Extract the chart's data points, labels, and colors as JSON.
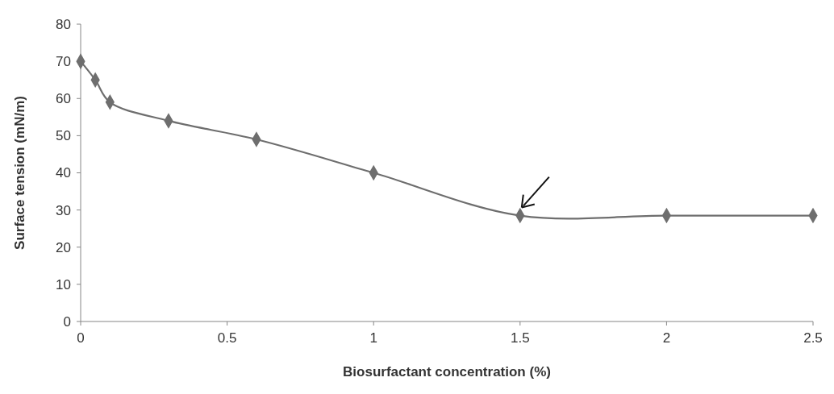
{
  "chart_data": {
    "type": "line",
    "xlabel": "Biosurfactant concentration (%)",
    "ylabel": "Surface tension (mN/m)",
    "series": [
      {
        "color": "#6e6e6e",
        "x": [
          0,
          0.05,
          0.1,
          0.3,
          0.6,
          1,
          1.5,
          2,
          2.5
        ],
        "values": [
          70,
          65,
          59,
          54,
          49,
          40,
          28.5,
          28.5,
          28.5
        ]
      }
    ],
    "xlim": [
      0,
      2.5
    ],
    "xticks": [
      0,
      0.5,
      1,
      1.5,
      2,
      2.5
    ],
    "ylim": [
      0,
      80
    ],
    "yticks": [
      0,
      10,
      20,
      30,
      40,
      50,
      60,
      70,
      80
    ],
    "marker": "diamond",
    "line_style": "solid"
  }
}
